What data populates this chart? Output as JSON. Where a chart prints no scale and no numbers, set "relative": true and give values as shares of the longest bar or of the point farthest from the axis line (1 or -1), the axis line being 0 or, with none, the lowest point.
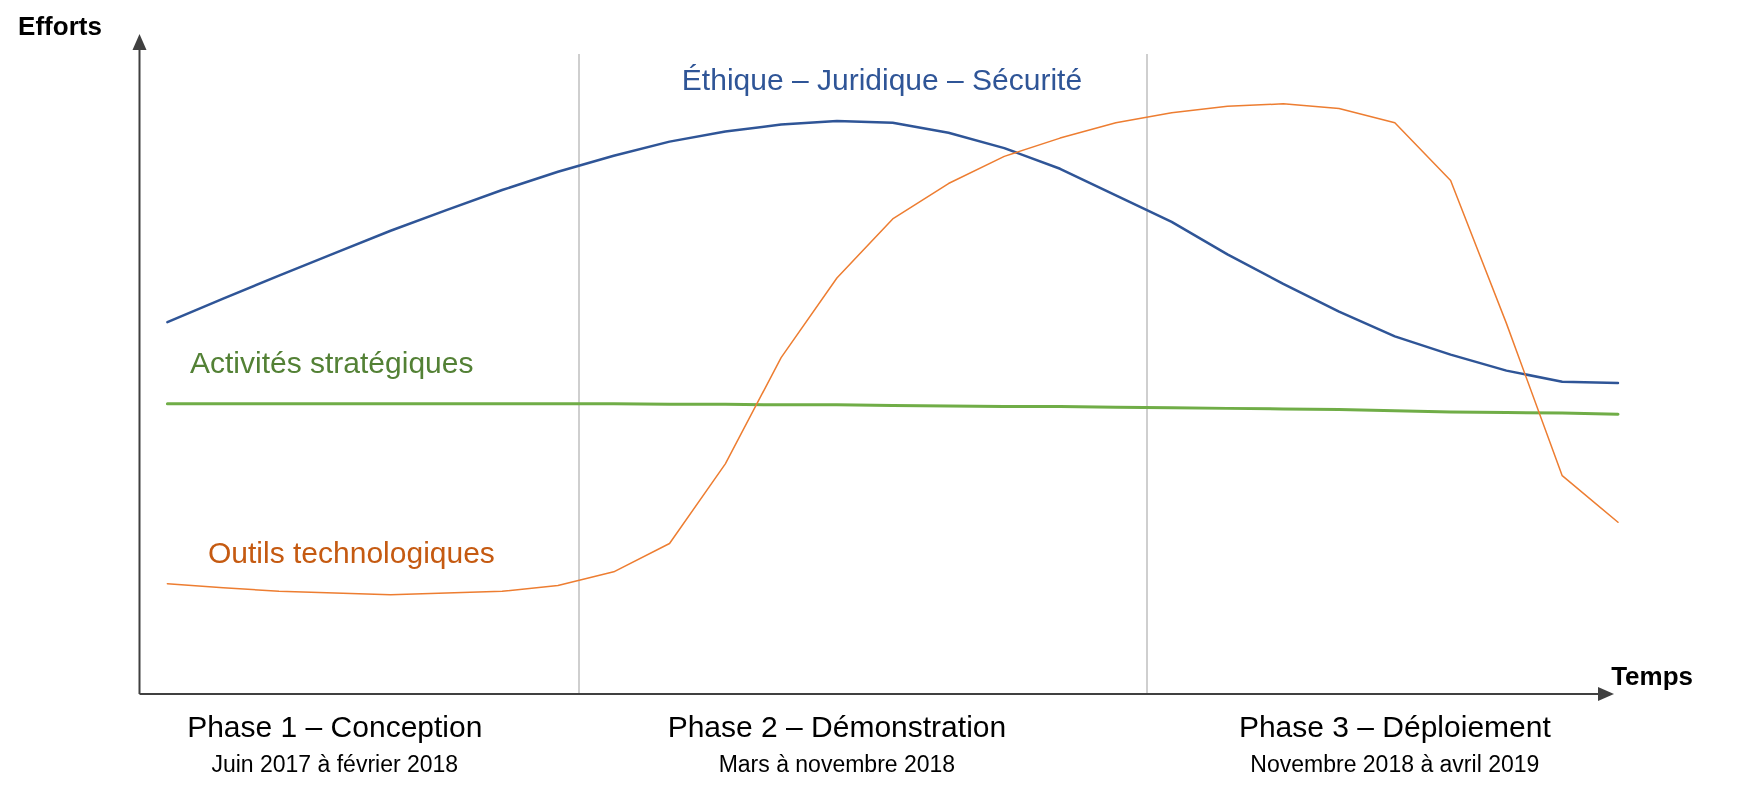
{
  "chart_data": {
    "type": "line",
    "relative": true,
    "xlabel": "Temps",
    "ylabel": "Efforts",
    "tick_labels": "x",
    "line_style": "solid",
    "marker": "none",
    "categories": [
      null,
      null,
      null,
      "Phase 1 – Conception\nJuin 2017 à février 2018",
      null,
      null,
      null,
      null,
      null,
      null,
      null,
      null,
      "Phase 2 – Démonstration\nMars à novembre 2018",
      null,
      null,
      null,
      null,
      null,
      null,
      null,
      null,
      null,
      "Phase 3 – Déploiement\nNovembre 2018 à avril 2019",
      null,
      null,
      null,
      null
    ],
    "series": [
      {
        "name": "Éthique – Juridique – Sécurité",
        "color": "#2f5597",
        "values": [
          0.63,
          0.67,
          0.709,
          0.747,
          0.785,
          0.82,
          0.854,
          0.885,
          0.912,
          0.936,
          0.953,
          0.965,
          0.971,
          0.968,
          0.951,
          0.925,
          0.89,
          0.845,
          0.8,
          0.745,
          0.695,
          0.648,
          0.606,
          0.575,
          0.548,
          0.529,
          0.527
        ]
      },
      {
        "name": "Activités stratégiques",
        "color": "#70ad47",
        "values": [
          0.492,
          0.492,
          0.492,
          0.492,
          0.492,
          0.492,
          0.492,
          0.492,
          0.492,
          0.491,
          0.491,
          0.49,
          0.49,
          0.489,
          0.488,
          0.487,
          0.487,
          0.486,
          0.485,
          0.484,
          0.483,
          0.482,
          0.48,
          0.478,
          0.477,
          0.476,
          0.474
        ]
      },
      {
        "name": "Outils technologiques",
        "color": "#ed7d31",
        "values": [
          0.187,
          0.18,
          0.174,
          0.171,
          0.168,
          0.171,
          0.174,
          0.184,
          0.207,
          0.255,
          0.39,
          0.57,
          0.705,
          0.805,
          0.865,
          0.911,
          0.942,
          0.968,
          0.985,
          0.996,
          1,
          0.992,
          0.968,
          0.87,
          0.628,
          0.37,
          0.291
        ]
      }
    ]
  }
}
